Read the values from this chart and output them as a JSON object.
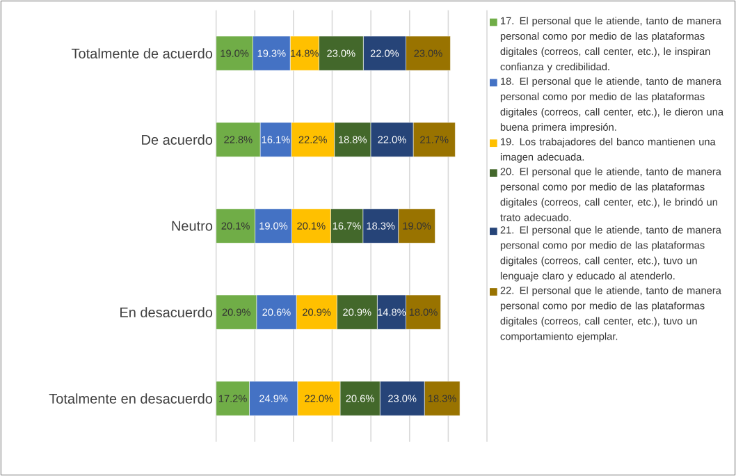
{
  "chart_data": {
    "type": "bar",
    "orientation": "horizontal",
    "stacked": true,
    "categories": [
      "Totalmente de acuerdo",
      "De acuerdo",
      "Neutro",
      "En desacuerdo",
      "Totalmente en desacuerdo"
    ],
    "series": [
      {
        "name": "17.  El personal que le atiende, tanto de manera personal como por medio de las plataformas digitales (correos, call center, etc.), le inspiran confianza y credibilidad.",
        "color": "#70ad47",
        "values": [
          19.0,
          22.8,
          20.1,
          20.9,
          17.2
        ],
        "value_labels": [
          "19.0%",
          "22.8%",
          "20.1%",
          "20.9%",
          "17.2%"
        ]
      },
      {
        "name": "18.  El personal que le atiende, tanto de manera personal como por medio de las plataformas digitales (correos, call center, etc.), le dieron una buena primera impresión.",
        "color": "#4472c4",
        "values": [
          19.3,
          16.1,
          19.0,
          20.6,
          24.9
        ],
        "value_labels": [
          "19.3%",
          "16.1%",
          "19.0%",
          "20.6%",
          "24.9%"
        ]
      },
      {
        "name": "19.  Los trabajadores del banco mantienen una imagen adecuada.",
        "color": "#ffc000",
        "values": [
          14.8,
          22.2,
          20.1,
          20.9,
          22.0
        ],
        "value_labels": [
          "14.8%",
          "22.2%",
          "20.1%",
          "20.9%",
          "22.0%"
        ]
      },
      {
        "name": "20.  El personal que le atiende, tanto de manera personal como por medio de las plataformas digitales (correos, call center, etc.), le brindó un trato adecuado.",
        "color": "#43682b",
        "values": [
          23.0,
          18.8,
          16.7,
          20.9,
          20.6
        ],
        "value_labels": [
          "23.0%",
          "18.8%",
          "16.7%",
          "20.9%",
          "20.6%"
        ]
      },
      {
        "name": "21.  El personal que le atiende, tanto de manera personal como por medio de las plataformas digitales (correos, call center, etc.), tuvo un lenguaje claro y educado al atenderlo.",
        "color": "#264478",
        "values": [
          22.0,
          22.0,
          18.3,
          14.8,
          23.0
        ],
        "value_labels": [
          "22.0%",
          "22.0%",
          "18.3%",
          "14.8%",
          "23.0%"
        ]
      },
      {
        "name": "22.  El personal que le atiende, tanto de manera personal como por medio de las plataformas digitales (correos, call center, etc.), tuvo un comportamiento ejemplar.",
        "color": "#997300",
        "values": [
          23.0,
          21.7,
          19.0,
          18.0,
          18.3
        ],
        "value_labels": [
          "23.0%",
          "21.7%",
          "19.0%",
          "18.0%",
          "18.3%"
        ]
      }
    ],
    "xlim": [
      0,
      140
    ],
    "xticks": [
      {
        "value": 0,
        "label": null
      },
      {
        "value": 20,
        "label": null
      },
      {
        "value": 40,
        "label": null
      },
      {
        "value": 60,
        "label": null
      },
      {
        "value": 80,
        "label": null
      },
      {
        "value": 100,
        "label": null
      },
      {
        "value": 120,
        "label": null
      },
      {
        "value": 140,
        "label": null
      }
    ],
    "grid": "x",
    "legend": "right",
    "tick_labels": "y"
  }
}
